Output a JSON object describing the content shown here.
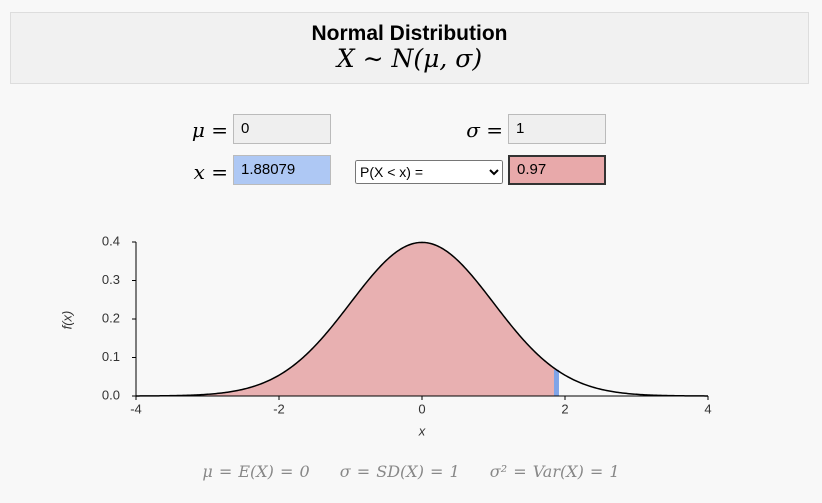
{
  "header": {
    "title": "Normal Distribution",
    "formula": "X ∼ N(μ, σ)"
  },
  "inputs": {
    "mu_label": "μ =",
    "sigma_label": "σ =",
    "x_label": "x =",
    "mode": "P(X < x) ="
  },
  "chart_data": {
    "type": "normal",
    "mu": 0,
    "sigma": 1,
    "x_value": 1.88079,
    "probability": 0.97,
    "fill_color": "#e8b0b1",
    "marker_color": "#7fa4e8",
    "line_color": "#000000",
    "xlabel": "x",
    "ylabel": "f(x)",
    "xlim": [
      -4,
      4
    ],
    "xticks": [
      -4,
      -2,
      0,
      2,
      4
    ],
    "ylim": [
      0,
      0.4
    ],
    "yticks": [
      {
        "value": 0,
        "label": "0.0"
      },
      0.1,
      0.2,
      0.3,
      0.4
    ]
  },
  "footer": [
    "μ = E(X) = 0",
    "σ = SD(X) = 1",
    "σ² = Var(X) = 1"
  ]
}
